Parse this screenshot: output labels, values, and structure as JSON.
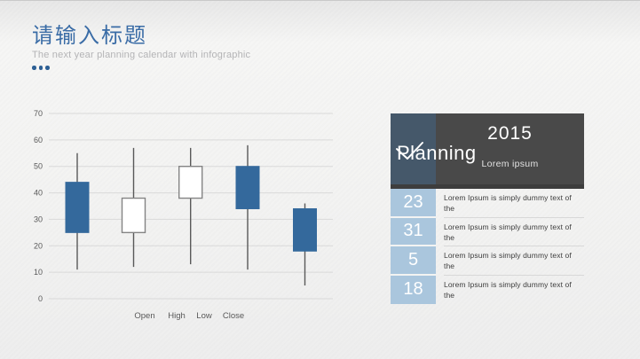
{
  "header": {
    "title": "请输入标题",
    "subtitle": "The next year planning calendar with infographic"
  },
  "accent": {
    "title_blue": "#3a6ca6",
    "dots_blue": "#2d5f94",
    "slate_block": "#45586a",
    "dark_gray_block": "#494949",
    "light_blue_cell": "#aac6dd"
  },
  "chart_data": {
    "type": "candlestick",
    "title": "",
    "xlabel": "",
    "ylabel": "",
    "ylim": [
      0,
      70
    ],
    "yticks": [
      0,
      10,
      20,
      30,
      40,
      50,
      60,
      70
    ],
    "grid": true,
    "legend": [
      "Open",
      "High",
      "Low",
      "Close"
    ],
    "legend_position": "bottom",
    "candles": [
      {
        "open": 44,
        "high": 55,
        "low": 11,
        "close": 25,
        "direction": "down",
        "fill": "solid"
      },
      {
        "open": 25,
        "high": 57,
        "low": 12,
        "close": 38,
        "direction": "up",
        "fill": "hollow"
      },
      {
        "open": 38,
        "high": 57,
        "low": 13,
        "close": 50,
        "direction": "up",
        "fill": "hollow"
      },
      {
        "open": 50,
        "high": 58,
        "low": 11,
        "close": 34,
        "direction": "down",
        "fill": "solid"
      },
      {
        "open": 34,
        "high": 36,
        "low": 5,
        "close": 18,
        "direction": "down",
        "fill": "solid"
      }
    ],
    "colors": {
      "solid_fill": "#34699c",
      "hollow_fill": "#ffffff",
      "hollow_stroke": "#848484",
      "wick": "#595959",
      "grid": "#d9d9d9",
      "axis_text": "#595959"
    }
  },
  "panel": {
    "year": "2015",
    "year_caption": "Lorem ipsum",
    "title": "Planning",
    "rows": [
      {
        "number": "23",
        "text": "Lorem Ipsum is simply dummy text of the"
      },
      {
        "number": "31",
        "text": "Lorem Ipsum is simply dummy text of the"
      },
      {
        "number": "5",
        "text": "Lorem Ipsum is simply dummy text of the"
      },
      {
        "number": "18",
        "text": "Lorem Ipsum is simply dummy text of the"
      }
    ]
  }
}
